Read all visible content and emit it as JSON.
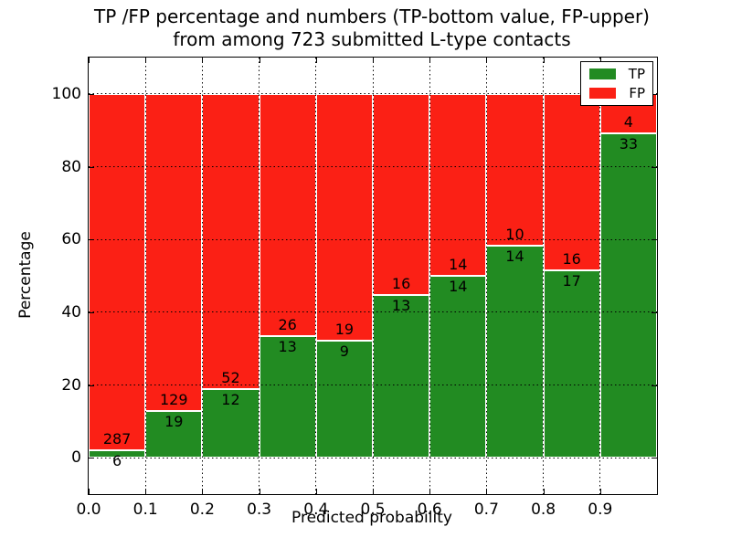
{
  "title": {
    "line1": "TP /FP percentage and numbers (TP-bottom value, FP-upper)",
    "line2": "from among 723 submitted L-type contacts"
  },
  "chart_data": {
    "type": "bar",
    "stacked": true,
    "title": "TP /FP percentage and numbers (TP-bottom value, FP-upper) from among 723 submitted L-type contacts",
    "total_contacts": 723,
    "xlabel": "Predicted probability",
    "ylabel": "Percentage",
    "xlim": [
      0.0,
      1.0
    ],
    "ylim": [
      -10,
      110
    ],
    "x_tick_labels": [
      "0.0",
      "0.1",
      "0.2",
      "0.3",
      "0.4",
      "0.5",
      "0.6",
      "0.7",
      "0.8",
      "0.9"
    ],
    "y_ticks": [
      0,
      20,
      40,
      60,
      80,
      100
    ],
    "grid": true,
    "bin_width": 0.1,
    "series": [
      {
        "name": "TP",
        "color": "#228b22",
        "counts": [
          6,
          19,
          12,
          13,
          9,
          13,
          14,
          14,
          17,
          33
        ]
      },
      {
        "name": "FP",
        "color": "#fb2015",
        "counts": [
          287,
          129,
          52,
          26,
          19,
          16,
          14,
          10,
          16,
          4
        ]
      }
    ],
    "bins": [
      {
        "range": [
          0.0,
          0.1
        ],
        "tp": 6,
        "fp": 287
      },
      {
        "range": [
          0.1,
          0.2
        ],
        "tp": 19,
        "fp": 129
      },
      {
        "range": [
          0.2,
          0.3
        ],
        "tp": 12,
        "fp": 52
      },
      {
        "range": [
          0.3,
          0.4
        ],
        "tp": 13,
        "fp": 26
      },
      {
        "range": [
          0.4,
          0.5
        ],
        "tp": 9,
        "fp": 19
      },
      {
        "range": [
          0.5,
          0.6
        ],
        "tp": 13,
        "fp": 16
      },
      {
        "range": [
          0.6,
          0.7
        ],
        "tp": 14,
        "fp": 14
      },
      {
        "range": [
          0.7,
          0.8
        ],
        "tp": 14,
        "fp": 10
      },
      {
        "range": [
          0.8,
          0.9
        ],
        "tp": 17,
        "fp": 16
      },
      {
        "range": [
          0.9,
          1.0
        ],
        "tp": 33,
        "fp": 4
      }
    ],
    "legend": {
      "position": "upper right",
      "entries": [
        {
          "label": "TP",
          "color": "#228b22"
        },
        {
          "label": "FP",
          "color": "#fb2015"
        }
      ]
    }
  },
  "colors": {
    "tp": "#228b22",
    "fp": "#fb2015",
    "grid": "#000000",
    "background": "#ffffff",
    "bar_edge": "#ffffff"
  }
}
